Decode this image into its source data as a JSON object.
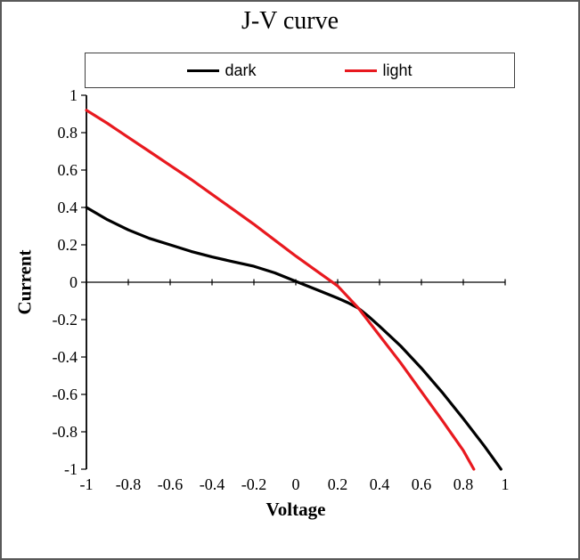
{
  "title": "J-V curve",
  "chart_data": {
    "type": "line",
    "title": "J-V curve",
    "xlabel": "Voltage",
    "ylabel": "Current",
    "xlim": [
      -1,
      1
    ],
    "ylim": [
      -1,
      1
    ],
    "x_ticks": [
      "-1",
      "-0.8",
      "-0.6",
      "-0.4",
      "-0.2",
      "0",
      "0.2",
      "0.4",
      "0.6",
      "0.8",
      "1"
    ],
    "y_ticks": [
      "1",
      "0.8",
      "0.6",
      "0.4",
      "0.2",
      "0",
      "-0.2",
      "-0.4",
      "-0.6",
      "-0.8",
      "-1"
    ],
    "grid": false,
    "legend_position": "top",
    "axis_color": "#000000",
    "series": [
      {
        "name": "dark",
        "color": "#000000",
        "points": [
          [
            -1,
            0.4
          ],
          [
            -0.9,
            0.335
          ],
          [
            -0.8,
            0.28
          ],
          [
            -0.7,
            0.235
          ],
          [
            -0.6,
            0.2
          ],
          [
            -0.5,
            0.165
          ],
          [
            -0.4,
            0.135
          ],
          [
            -0.3,
            0.11
          ],
          [
            -0.2,
            0.085
          ],
          [
            -0.1,
            0.05
          ],
          [
            0,
            0.005
          ],
          [
            0.1,
            -0.04
          ],
          [
            0.2,
            -0.085
          ],
          [
            0.25,
            -0.11
          ],
          [
            0.3,
            -0.14
          ],
          [
            0.35,
            -0.185
          ],
          [
            0.4,
            -0.235
          ],
          [
            0.5,
            -0.34
          ],
          [
            0.6,
            -0.46
          ],
          [
            0.7,
            -0.59
          ],
          [
            0.8,
            -0.73
          ],
          [
            0.9,
            -0.875
          ],
          [
            0.98,
            -1.0
          ]
        ]
      },
      {
        "name": "light",
        "color": "#e8191f",
        "points": [
          [
            -1,
            0.92
          ],
          [
            -0.9,
            0.85
          ],
          [
            -0.8,
            0.775
          ],
          [
            -0.7,
            0.7
          ],
          [
            -0.6,
            0.625
          ],
          [
            -0.5,
            0.55
          ],
          [
            -0.4,
            0.47
          ],
          [
            -0.3,
            0.39
          ],
          [
            -0.2,
            0.31
          ],
          [
            -0.1,
            0.225
          ],
          [
            0,
            0.14
          ],
          [
            0.1,
            0.06
          ],
          [
            0.2,
            -0.02
          ],
          [
            0.25,
            -0.08
          ],
          [
            0.3,
            -0.14
          ],
          [
            0.4,
            -0.285
          ],
          [
            0.5,
            -0.43
          ],
          [
            0.6,
            -0.585
          ],
          [
            0.7,
            -0.74
          ],
          [
            0.8,
            -0.9
          ],
          [
            0.85,
            -1.0
          ]
        ]
      }
    ]
  }
}
